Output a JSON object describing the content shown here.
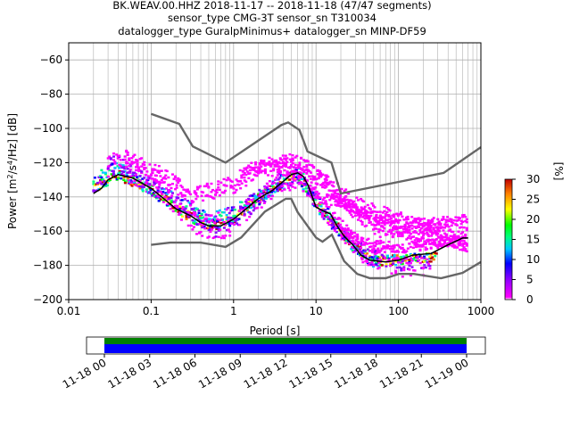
{
  "chart_data": {
    "type": "heatmap",
    "title_lines": [
      "BK.WEAV.00.HHZ   2018-11-17 -- 2018-11-18  (47/47 segments)",
      "sensor_type CMG-3T sensor_sn T310034",
      "datalogger_type GuralpMinimus+ datalogger_sn MINP-DF59"
    ],
    "xlabel": "Period [s]",
    "ylabel_parts": [
      "Power [m",
      "2",
      "/s",
      "4",
      "/Hz] [dB]"
    ],
    "x_scale": "log",
    "xlim": [
      0.01,
      1000
    ],
    "ylim": [
      -200,
      -50
    ],
    "xticks": [
      {
        "value": 0.01,
        "label": "0.01"
      },
      {
        "value": 0.1,
        "label": "0.1"
      },
      {
        "value": 1,
        "label": "1"
      },
      {
        "value": 10,
        "label": "10"
      },
      {
        "value": 100,
        "label": "100"
      },
      {
        "value": 1000,
        "label": "1000"
      }
    ],
    "yticks": [
      -60,
      -80,
      -100,
      -120,
      -140,
      -160,
      -180,
      -200
    ],
    "grid": true,
    "colorbar": {
      "label": "[%]",
      "range": [
        0,
        30
      ],
      "ticks": [
        0,
        5,
        10,
        15,
        20,
        25,
        30
      ],
      "colormap": "pqlx"
    },
    "noise_models": {
      "high_noise_model": [
        [
          0.1,
          -91.5
        ],
        [
          0.22,
          -97.4
        ],
        [
          0.32,
          -110.5
        ],
        [
          0.8,
          -120
        ],
        [
          3.8,
          -98
        ],
        [
          4.6,
          -96.5
        ],
        [
          6.3,
          -101
        ],
        [
          7.9,
          -113.5
        ],
        [
          15.4,
          -120
        ],
        [
          20,
          -138
        ],
        [
          354,
          -126
        ],
        [
          1000,
          -111
        ]
      ],
      "low_noise_model": [
        [
          0.1,
          -168
        ],
        [
          0.17,
          -166.7
        ],
        [
          0.4,
          -166.7
        ],
        [
          0.8,
          -169.2
        ],
        [
          1.24,
          -163.7
        ],
        [
          2.4,
          -148.6
        ],
        [
          4.3,
          -141.1
        ],
        [
          5,
          -141.1
        ],
        [
          6,
          -149
        ],
        [
          10,
          -163.8
        ],
        [
          12,
          -166.2
        ],
        [
          15.6,
          -162.1
        ],
        [
          21.9,
          -177.5
        ],
        [
          31.6,
          -185
        ],
        [
          45,
          -187.5
        ],
        [
          70,
          -187.5
        ],
        [
          101,
          -185
        ],
        [
          154,
          -185
        ],
        [
          328,
          -187.5
        ],
        [
          600,
          -184.4
        ],
        [
          1000,
          -178
        ]
      ]
    },
    "mean_curve": [
      [
        0.02,
        -138
      ],
      [
        0.025,
        -135
      ],
      [
        0.03,
        -130
      ],
      [
        0.04,
        -127
      ],
      [
        0.06,
        -129
      ],
      [
        0.1,
        -135
      ],
      [
        0.15,
        -142
      ],
      [
        0.2,
        -147
      ],
      [
        0.3,
        -151
      ],
      [
        0.4,
        -155
      ],
      [
        0.5,
        -157
      ],
      [
        0.7,
        -157
      ],
      [
        1.0,
        -153
      ],
      [
        1.5,
        -146
      ],
      [
        2,
        -141
      ],
      [
        3,
        -136
      ],
      [
        4,
        -131
      ],
      [
        5,
        -127
      ],
      [
        6,
        -126
      ],
      [
        7,
        -128
      ],
      [
        8,
        -133
      ],
      [
        9,
        -140
      ],
      [
        10,
        -146
      ],
      [
        12,
        -148
      ],
      [
        15,
        -150
      ],
      [
        18,
        -157
      ],
      [
        22,
        -163
      ],
      [
        28,
        -168
      ],
      [
        35,
        -174
      ],
      [
        45,
        -177
      ],
      [
        70,
        -178
      ],
      [
        100,
        -177
      ],
      [
        150,
        -174
      ],
      [
        250,
        -173
      ],
      [
        400,
        -168
      ],
      [
        600,
        -164
      ],
      [
        700,
        -164
      ]
    ],
    "density_bands": [
      {
        "from": [
          [
            0.02,
            -135
          ],
          [
            0.04,
            -127
          ],
          [
            0.1,
            -136
          ],
          [
            0.3,
            -152
          ],
          [
            0.6,
            -157
          ],
          [
            1,
            -153
          ],
          [
            2,
            -141
          ],
          [
            6,
            -126
          ],
          [
            10,
            -145
          ],
          [
            20,
            -160
          ],
          [
            45,
            -177
          ],
          [
            100,
            -177
          ],
          [
            300,
            -175
          ]
        ],
        "spread": 3,
        "pct": 24
      },
      {
        "from": [
          [
            0.02,
            -133
          ],
          [
            0.035,
            -124
          ],
          [
            0.07,
            -130
          ],
          [
            0.15,
            -140
          ],
          [
            0.3,
            -148
          ],
          [
            0.5,
            -155
          ],
          [
            1,
            -150
          ],
          [
            3,
            -135
          ],
          [
            6,
            -126
          ],
          [
            12,
            -148
          ],
          [
            30,
            -170
          ],
          [
            60,
            -178
          ]
        ],
        "spread": 5,
        "pct": 12
      },
      {
        "from": [
          [
            0.03,
            -120
          ],
          [
            0.05,
            -122
          ],
          [
            0.1,
            -130
          ],
          [
            0.2,
            -145
          ],
          [
            0.4,
            -158
          ],
          [
            0.8,
            -159
          ],
          [
            1.5,
            -147
          ],
          [
            4,
            -130
          ],
          [
            7,
            -131
          ],
          [
            15,
            -152
          ],
          [
            40,
            -174
          ],
          [
            100,
            -181
          ],
          [
            250,
            -180
          ]
        ],
        "spread": 6,
        "pct": 6
      },
      {
        "from": [
          [
            0.05,
            -118
          ],
          [
            0.1,
            -125
          ],
          [
            0.15,
            -128
          ],
          [
            0.3,
            -140
          ],
          [
            1,
            -133
          ],
          [
            2,
            -124
          ],
          [
            4,
            -122
          ],
          [
            8,
            -124
          ],
          [
            12,
            -130
          ],
          [
            30,
            -145
          ],
          [
            60,
            -150
          ],
          [
            120,
            -155
          ],
          [
            300,
            -160
          ],
          [
            700,
            -163
          ]
        ],
        "spread": 5,
        "pct": 2
      },
      {
        "from": [
          [
            1.2,
            -126
          ],
          [
            2,
            -122
          ],
          [
            5,
            -119
          ],
          [
            8,
            -122
          ],
          [
            15,
            -135
          ],
          [
            30,
            -150
          ],
          [
            60,
            -160
          ],
          [
            200,
            -163
          ],
          [
            700,
            -168
          ]
        ],
        "spread": 4,
        "pct": 1
      },
      {
        "from": [
          [
            10,
            -140
          ],
          [
            20,
            -143
          ],
          [
            50,
            -152
          ],
          [
            100,
            -156
          ],
          [
            300,
            -155
          ],
          [
            700,
            -153
          ]
        ],
        "spread": 3,
        "pct": 1
      },
      {
        "from": [
          [
            20,
            -160
          ],
          [
            40,
            -167
          ],
          [
            100,
            -170
          ],
          [
            300,
            -167
          ],
          [
            700,
            -165
          ]
        ],
        "spread": 3,
        "pct": 3
      }
    ]
  },
  "timeline": {
    "tick_labels": [
      "11-18 00",
      "11-18 03",
      "11-18 06",
      "11-18 09",
      "11-18 12",
      "11-18 15",
      "11-18 18",
      "11-18 21",
      "11-19 00"
    ],
    "colors": {
      "coverage": "#008000",
      "data": "#0000ff"
    }
  },
  "colors": {
    "noise_model": "#666666",
    "mean_curve": "#000000",
    "grid": "#b0b0b0"
  }
}
